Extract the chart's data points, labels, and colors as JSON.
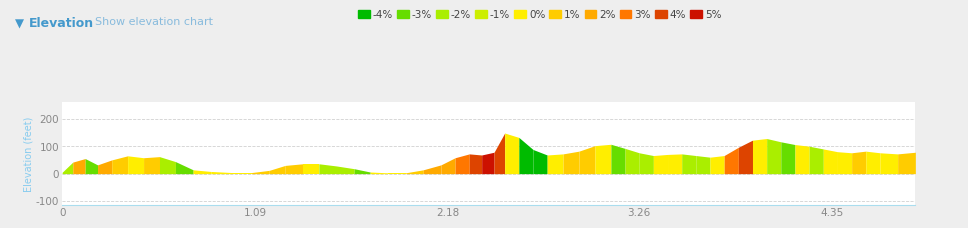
{
  "title": "Elevation",
  "subtitle": "Show elevation chart",
  "ylabel": "Elevation (feet)",
  "xlabel_ticks": [
    0,
    1.09,
    2.18,
    3.26,
    4.35
  ],
  "yticks": [
    -100,
    0,
    100,
    200
  ],
  "ylim": [
    -115,
    260
  ],
  "xlim": [
    0,
    4.82
  ],
  "bg_color": "#eeeeee",
  "plot_bg_color": "#ffffff",
  "grid_color": "#cccccc",
  "legend_items": [
    {
      "label": "-4%",
      "color": "#00bb00"
    },
    {
      "label": "-3%",
      "color": "#66dd00"
    },
    {
      "label": "-2%",
      "color": "#aaee00"
    },
    {
      "label": "-1%",
      "color": "#ccee00"
    },
    {
      "label": "0%",
      "color": "#ffee00"
    },
    {
      "label": "1%",
      "color": "#ffcc00"
    },
    {
      "label": "2%",
      "color": "#ffaa00"
    },
    {
      "label": "3%",
      "color": "#ff7700"
    },
    {
      "label": "4%",
      "color": "#dd4400"
    },
    {
      "label": "5%",
      "color": "#cc1100"
    }
  ],
  "segments": [
    {
      "x": [
        0.0,
        0.06
      ],
      "y": [
        5,
        42
      ],
      "color": "#aaee00"
    },
    {
      "x": [
        0.06,
        0.13
      ],
      "y": [
        42,
        55
      ],
      "color": "#ffaa00"
    },
    {
      "x": [
        0.13,
        0.2
      ],
      "y": [
        55,
        32
      ],
      "color": "#66dd00"
    },
    {
      "x": [
        0.2,
        0.28
      ],
      "y": [
        32,
        50
      ],
      "color": "#ffaa00"
    },
    {
      "x": [
        0.28,
        0.37
      ],
      "y": [
        50,
        65
      ],
      "color": "#ffcc00"
    },
    {
      "x": [
        0.37,
        0.46
      ],
      "y": [
        65,
        58
      ],
      "color": "#ffee00"
    },
    {
      "x": [
        0.46,
        0.55
      ],
      "y": [
        58,
        62
      ],
      "color": "#ffcc00"
    },
    {
      "x": [
        0.55,
        0.64
      ],
      "y": [
        62,
        44
      ],
      "color": "#aaee00"
    },
    {
      "x": [
        0.64,
        0.74
      ],
      "y": [
        44,
        14
      ],
      "color": "#66dd00"
    },
    {
      "x": [
        0.74,
        0.84
      ],
      "y": [
        14,
        8
      ],
      "color": "#ffee00"
    },
    {
      "x": [
        0.84,
        0.96
      ],
      "y": [
        8,
        4
      ],
      "color": "#ffee00"
    },
    {
      "x": [
        0.96,
        1.07
      ],
      "y": [
        4,
        4
      ],
      "color": "#ffee00"
    },
    {
      "x": [
        1.07,
        1.17
      ],
      "y": [
        4,
        12
      ],
      "color": "#ffcc00"
    },
    {
      "x": [
        1.17,
        1.26
      ],
      "y": [
        12,
        30
      ],
      "color": "#ffcc00"
    },
    {
      "x": [
        1.26,
        1.36
      ],
      "y": [
        30,
        36
      ],
      "color": "#ffcc00"
    },
    {
      "x": [
        1.36,
        1.45
      ],
      "y": [
        36,
        36
      ],
      "color": "#ffee00"
    },
    {
      "x": [
        1.45,
        1.55
      ],
      "y": [
        36,
        28
      ],
      "color": "#aaee00"
    },
    {
      "x": [
        1.55,
        1.65
      ],
      "y": [
        28,
        18
      ],
      "color": "#aaee00"
    },
    {
      "x": [
        1.65,
        1.74
      ],
      "y": [
        18,
        6
      ],
      "color": "#66dd00"
    },
    {
      "x": [
        1.74,
        1.84
      ],
      "y": [
        6,
        3
      ],
      "color": "#ffee00"
    },
    {
      "x": [
        1.84,
        1.94
      ],
      "y": [
        3,
        3
      ],
      "color": "#ffee00"
    },
    {
      "x": [
        1.94,
        2.04
      ],
      "y": [
        3,
        14
      ],
      "color": "#ffcc00"
    },
    {
      "x": [
        2.04,
        2.14
      ],
      "y": [
        14,
        32
      ],
      "color": "#ffaa00"
    },
    {
      "x": [
        2.14,
        2.22
      ],
      "y": [
        32,
        58
      ],
      "color": "#ffaa00"
    },
    {
      "x": [
        2.22,
        2.3
      ],
      "y": [
        58,
        72
      ],
      "color": "#ff7700"
    },
    {
      "x": [
        2.3,
        2.37
      ],
      "y": [
        72,
        68
      ],
      "color": "#dd4400"
    },
    {
      "x": [
        2.37,
        2.44
      ],
      "y": [
        68,
        78
      ],
      "color": "#cc1100"
    },
    {
      "x": [
        2.44,
        2.5
      ],
      "y": [
        78,
        148
      ],
      "color": "#dd4400"
    },
    {
      "x": [
        2.5,
        2.58
      ],
      "y": [
        148,
        132
      ],
      "color": "#ffee00"
    },
    {
      "x": [
        2.58,
        2.66
      ],
      "y": [
        132,
        88
      ],
      "color": "#00bb00"
    },
    {
      "x": [
        2.66,
        2.74
      ],
      "y": [
        88,
        68
      ],
      "color": "#00bb00"
    },
    {
      "x": [
        2.74,
        2.83
      ],
      "y": [
        68,
        72
      ],
      "color": "#ffee00"
    },
    {
      "x": [
        2.83,
        2.92
      ],
      "y": [
        72,
        82
      ],
      "color": "#ffcc00"
    },
    {
      "x": [
        2.92,
        3.01
      ],
      "y": [
        82,
        102
      ],
      "color": "#ffcc00"
    },
    {
      "x": [
        3.01,
        3.1
      ],
      "y": [
        102,
        107
      ],
      "color": "#ffee00"
    },
    {
      "x": [
        3.1,
        3.18
      ],
      "y": [
        107,
        92
      ],
      "color": "#66dd00"
    },
    {
      "x": [
        3.18,
        3.26
      ],
      "y": [
        92,
        76
      ],
      "color": "#aaee00"
    },
    {
      "x": [
        3.26,
        3.34
      ],
      "y": [
        76,
        66
      ],
      "color": "#aaee00"
    },
    {
      "x": [
        3.34,
        3.42
      ],
      "y": [
        66,
        70
      ],
      "color": "#ffee00"
    },
    {
      "x": [
        3.42,
        3.5
      ],
      "y": [
        70,
        72
      ],
      "color": "#ffee00"
    },
    {
      "x": [
        3.5,
        3.58
      ],
      "y": [
        72,
        66
      ],
      "color": "#aaee00"
    },
    {
      "x": [
        3.58,
        3.66
      ],
      "y": [
        66,
        60
      ],
      "color": "#aaee00"
    },
    {
      "x": [
        3.66,
        3.74
      ],
      "y": [
        60,
        66
      ],
      "color": "#ffee00"
    },
    {
      "x": [
        3.74,
        3.82
      ],
      "y": [
        66,
        96
      ],
      "color": "#ff7700"
    },
    {
      "x": [
        3.82,
        3.9
      ],
      "y": [
        96,
        122
      ],
      "color": "#dd4400"
    },
    {
      "x": [
        3.9,
        3.98
      ],
      "y": [
        122,
        128
      ],
      "color": "#ffee00"
    },
    {
      "x": [
        3.98,
        4.06
      ],
      "y": [
        128,
        116
      ],
      "color": "#aaee00"
    },
    {
      "x": [
        4.06,
        4.14
      ],
      "y": [
        116,
        106
      ],
      "color": "#66dd00"
    },
    {
      "x": [
        4.14,
        4.22
      ],
      "y": [
        106,
        100
      ],
      "color": "#ffee00"
    },
    {
      "x": [
        4.22,
        4.3
      ],
      "y": [
        100,
        90
      ],
      "color": "#aaee00"
    },
    {
      "x": [
        4.3,
        4.38
      ],
      "y": [
        90,
        80
      ],
      "color": "#ffee00"
    },
    {
      "x": [
        4.38,
        4.46
      ],
      "y": [
        80,
        76
      ],
      "color": "#ffee00"
    },
    {
      "x": [
        4.46,
        4.54
      ],
      "y": [
        76,
        82
      ],
      "color": "#ffcc00"
    },
    {
      "x": [
        4.54,
        4.62
      ],
      "y": [
        82,
        76
      ],
      "color": "#ffee00"
    },
    {
      "x": [
        4.62,
        4.72
      ],
      "y": [
        76,
        72
      ],
      "color": "#ffee00"
    },
    {
      "x": [
        4.72,
        4.82
      ],
      "y": [
        72,
        78
      ],
      "color": "#ffcc00"
    }
  ]
}
